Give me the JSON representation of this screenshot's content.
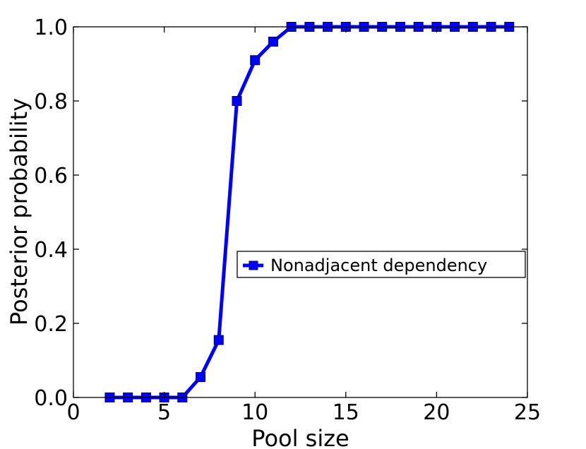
{
  "chart_data": {
    "type": "line",
    "title": "",
    "xlabel": "Pool size",
    "ylabel": "Posterior probability",
    "xlim": [
      0,
      25
    ],
    "ylim": [
      0.0,
      1.0
    ],
    "xticks": [
      0,
      5,
      10,
      15,
      20,
      25
    ],
    "yticks": [
      0.0,
      0.2,
      0.4,
      0.6,
      0.8,
      1.0
    ],
    "xtick_labels": [
      "0",
      "5",
      "10",
      "15",
      "20",
      "25"
    ],
    "ytick_labels": [
      "0.0",
      "0.2",
      "0.4",
      "0.6",
      "0.8",
      "1.0"
    ],
    "grid": false,
    "legend_position": "center-right",
    "series": [
      {
        "name": "Nonadjacent dependency",
        "color": "#0000ff",
        "marker": "square",
        "x": [
          2,
          3,
          4,
          5,
          6,
          7,
          8,
          9,
          10,
          11,
          12,
          13,
          14,
          15,
          16,
          17,
          18,
          19,
          20,
          21,
          22,
          23,
          24
        ],
        "y": [
          0.0,
          0.0,
          0.0,
          0.0,
          0.0,
          0.055,
          0.155,
          0.8,
          0.91,
          0.96,
          1.0,
          1.0,
          1.0,
          1.0,
          1.0,
          1.0,
          1.0,
          1.0,
          1.0,
          1.0,
          1.0,
          1.0,
          1.0
        ]
      }
    ]
  }
}
